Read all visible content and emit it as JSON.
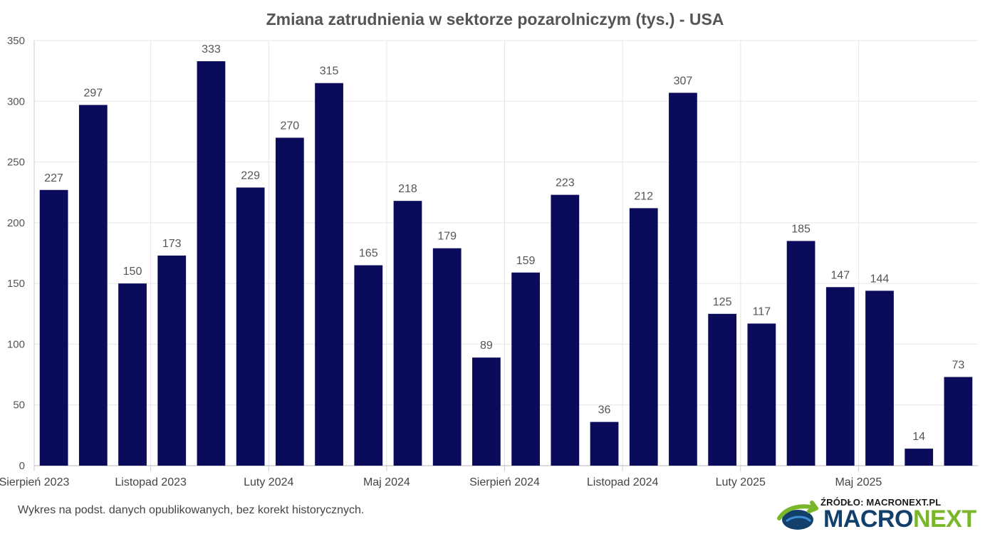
{
  "chart_data": {
    "type": "bar",
    "title": "Zmiana zatrudnienia w sektorze pozarolniczym (tys.) - USA",
    "xlabel": "",
    "ylabel": "",
    "ylim": [
      0,
      350
    ],
    "yticks": [
      0,
      50,
      100,
      150,
      200,
      250,
      300,
      350
    ],
    "x_tick_labels": [
      {
        "index": 0,
        "label": "Sierpień 2023"
      },
      {
        "index": 3,
        "label": "Listopad 2023"
      },
      {
        "index": 6,
        "label": "Luty 2024"
      },
      {
        "index": 9,
        "label": "Maj 2024"
      },
      {
        "index": 12,
        "label": "Sierpień 2024"
      },
      {
        "index": 15,
        "label": "Listopad 2024"
      },
      {
        "index": 18,
        "label": "Luty 2025"
      },
      {
        "index": 21,
        "label": "Maj 2025"
      }
    ],
    "values": [
      227,
      297,
      150,
      173,
      333,
      229,
      270,
      315,
      165,
      218,
      179,
      89,
      159,
      223,
      36,
      212,
      307,
      125,
      117,
      185,
      147,
      144,
      14,
      73
    ],
    "bar_color": "#0b0b5c",
    "grid": true,
    "legend": "none"
  },
  "footnote": "Wykres na podst. danych opublikowanych, bez korekt historycznych.",
  "logo": {
    "source": "ŹRÓDŁO: MACRONEXT.PL",
    "word_part1": "MACRO",
    "word_part2": "NEXT",
    "colors": {
      "primary": "#12406b",
      "accent": "#7ab62a"
    }
  }
}
